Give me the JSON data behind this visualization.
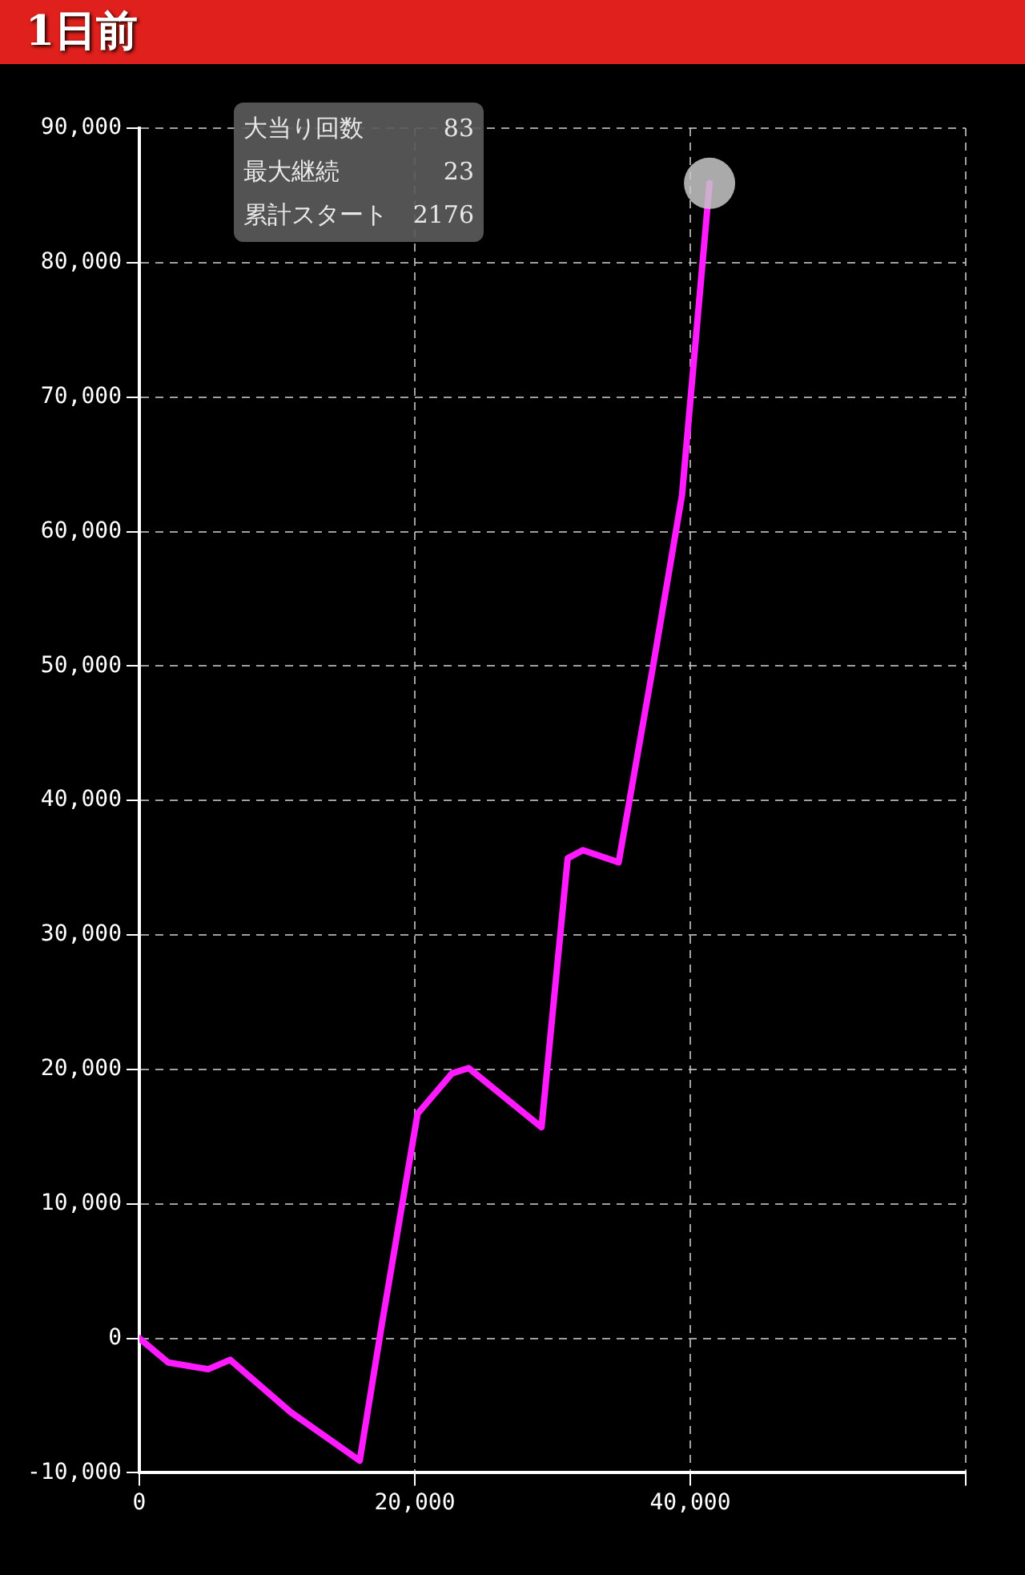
{
  "chart_data": {
    "type": "line",
    "title": "1日前",
    "x": [
      0,
      2100,
      5000,
      6600,
      11000,
      16000,
      17600,
      20200,
      22700,
      23900,
      29200,
      31100,
      32200,
      34800,
      37300,
      39400,
      41400
    ],
    "series": [
      {
        "color": "#ff1aff",
        "values": [
          0,
          -1800,
          -2300,
          -1600,
          -5500,
          -9100,
          1000,
          16700,
          19700,
          20100,
          15700,
          35700,
          36300,
          35400,
          50000,
          62700,
          85900
        ]
      }
    ],
    "xlim": [
      0,
      60000
    ],
    "xticks": [
      0,
      {
        "value": 20000,
        "label": "20,000"
      },
      {
        "value": 40000,
        "label": "40,000"
      },
      {
        "value": 60000,
        "label": null
      }
    ],
    "ylim": [
      -10000,
      90000
    ],
    "yticks": [
      {
        "value": -10000,
        "label": "-10,000"
      },
      0,
      {
        "value": 10000,
        "label": "10,000"
      },
      {
        "value": 20000,
        "label": "20,000"
      },
      {
        "value": 30000,
        "label": "30,000"
      },
      {
        "value": 40000,
        "label": "40,000"
      },
      {
        "value": 50000,
        "label": "50,000"
      },
      {
        "value": 60000,
        "label": "60,000"
      },
      {
        "value": 70000,
        "label": "70,000"
      },
      {
        "value": 80000,
        "label": "80,000"
      },
      {
        "value": 90000,
        "label": "90,000"
      }
    ],
    "grid": true,
    "legend": false,
    "marker": "none",
    "line_style": "solid",
    "annotations": [
      "大当り回数 83",
      "最大継続 23",
      "累計スタート 2176"
    ]
  }
}
